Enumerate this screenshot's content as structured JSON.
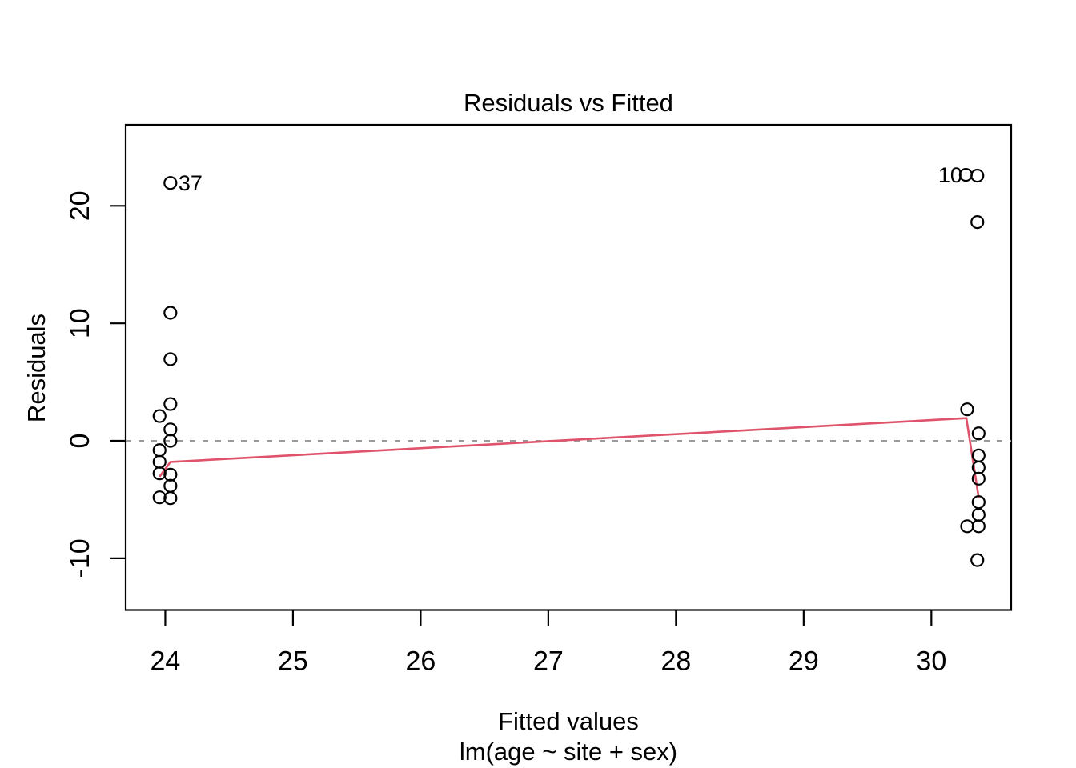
{
  "page": {
    "background": "#ffffff"
  },
  "chart_data": {
    "type": "scatter",
    "title": "Residuals vs Fitted",
    "xlabel": "Fitted values",
    "xlabel_line2": "lm(age ~ site + sex)",
    "ylabel": "Residuals",
    "x_ticks": [
      24,
      25,
      26,
      27,
      28,
      29,
      30
    ],
    "y_ticks": [
      -10,
      0,
      10,
      20
    ],
    "xlim": [
      23.69,
      30.625
    ],
    "ylim": [
      -14.4,
      26.9
    ],
    "grid": false,
    "frame": true,
    "points": [
      {
        "x": 24.04,
        "y": 21.95
      },
      {
        "x": 24.04,
        "y": 10.9
      },
      {
        "x": 24.04,
        "y": 6.95
      },
      {
        "x": 24.04,
        "y": 3.13
      },
      {
        "x": 23.955,
        "y": 2.11
      },
      {
        "x": 24.04,
        "y": 0.97
      },
      {
        "x": 24.04,
        "y": 0.0
      },
      {
        "x": 23.955,
        "y": -0.8
      },
      {
        "x": 23.955,
        "y": -1.79
      },
      {
        "x": 23.955,
        "y": -2.77
      },
      {
        "x": 24.04,
        "y": -2.88
      },
      {
        "x": 24.04,
        "y": -3.83
      },
      {
        "x": 23.955,
        "y": -4.81
      },
      {
        "x": 24.04,
        "y": -4.88
      },
      {
        "x": 30.27,
        "y": 22.64
      },
      {
        "x": 30.36,
        "y": 22.57
      },
      {
        "x": 30.36,
        "y": 18.62
      },
      {
        "x": 30.28,
        "y": 2.68
      },
      {
        "x": 30.37,
        "y": 0.63
      },
      {
        "x": 30.37,
        "y": -1.25
      },
      {
        "x": 30.37,
        "y": -2.27
      },
      {
        "x": 30.37,
        "y": -3.22
      },
      {
        "x": 30.37,
        "y": -5.22
      },
      {
        "x": 30.37,
        "y": -6.29
      },
      {
        "x": 30.28,
        "y": -7.27
      },
      {
        "x": 30.37,
        "y": -7.27
      },
      {
        "x": 30.36,
        "y": -10.15
      }
    ],
    "labeled_points": [
      {
        "label": "37",
        "x": 24.04,
        "y": 21.95,
        "side": "right"
      },
      {
        "label": "10",
        "x": 30.27,
        "y": 22.64,
        "side": "left"
      }
    ],
    "smoother": {
      "name": "lowess-smoother",
      "points": [
        [
          23.955,
          -3.05
        ],
        [
          24.04,
          -1.8
        ],
        [
          30.274,
          1.93
        ],
        [
          30.371,
          -4.88
        ]
      ]
    },
    "reference_line": {
      "y": 0,
      "style": "dashed"
    },
    "colors": {
      "points": "#000000",
      "smoother": "#DF536B",
      "reference_line": "#9a9a9a",
      "frame": "#000000",
      "text": "#000000"
    }
  }
}
